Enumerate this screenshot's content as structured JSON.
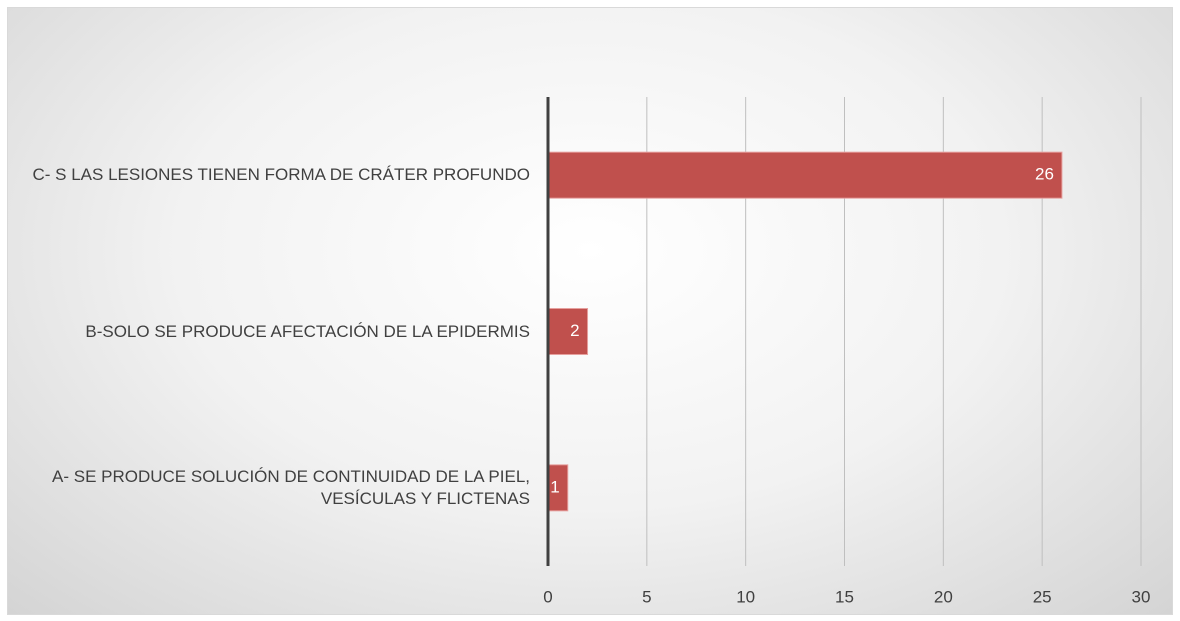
{
  "chart_data": {
    "type": "bar",
    "orientation": "horizontal",
    "categories": [
      "A- SE PRODUCE SOLUCIÓN DE CONTINUIDAD DE LA PIEL, VESÍCULAS Y FLICTENAS",
      "B-SOLO SE PRODUCE AFECTACIÓN DE LA EPIDERMIS",
      "C- S LAS LESIONES TIENEN FORMA DE CRÁTER PROFUNDO"
    ],
    "values": [
      1,
      2,
      26
    ],
    "color": "#c0504d",
    "xlim": [
      0,
      30
    ],
    "xticks": [
      0,
      5,
      10,
      15,
      20,
      25,
      30
    ],
    "grid": true
  }
}
